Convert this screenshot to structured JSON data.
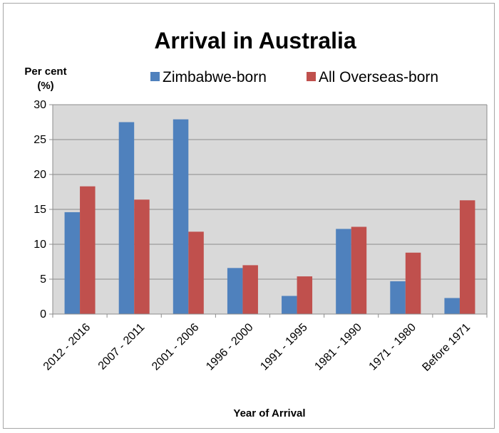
{
  "chart_data": {
    "type": "bar",
    "title": "Arrival in Australia",
    "ylabel_line1": "Per cent",
    "ylabel_line2": "(%)",
    "xlabel": "Year of Arrival",
    "categories": [
      "2012 - 2016",
      "2007 - 2011",
      "2001 - 2006",
      "1996 - 2000",
      "1991 - 1995",
      "1981 - 1990",
      "1971 - 1980",
      "Before 1971"
    ],
    "series": [
      {
        "name": "Zimbabwe-born",
        "color": "#4f81bd",
        "values": [
          14.6,
          27.5,
          27.9,
          6.6,
          2.6,
          12.2,
          4.7,
          2.3
        ]
      },
      {
        "name": "All Overseas-born",
        "color": "#c0504d",
        "values": [
          18.3,
          16.4,
          11.8,
          7.0,
          5.4,
          12.5,
          8.8,
          16.3
        ]
      }
    ],
    "ylim": [
      0,
      30
    ],
    "yticks": [
      "0",
      "5",
      "10",
      "15",
      "20",
      "25",
      "30"
    ],
    "grid": true,
    "plot_background": "#d9d9d9",
    "legend_position": "top"
  }
}
